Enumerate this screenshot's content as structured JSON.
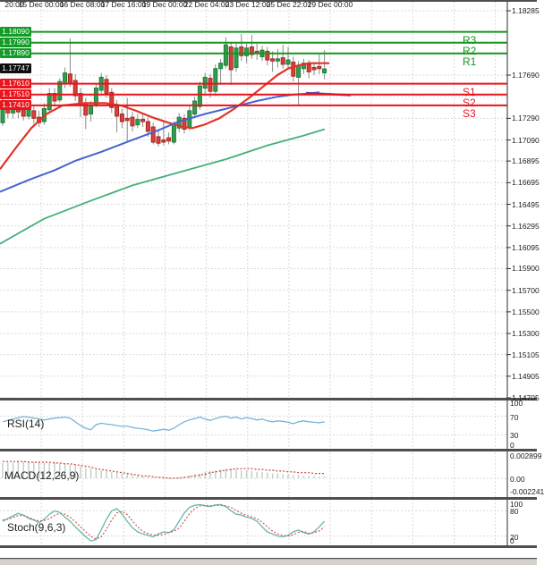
{
  "colors": {
    "bull": "#2f9e4f",
    "bull_border": "#1e7d38",
    "bear": "#d9403a",
    "bear_border": "#a32822",
    "wick": "#8a8a8a",
    "resistance_line": "#15961c",
    "support_line": "#e9141c",
    "badge_resistance": "#129c26",
    "badge_support": "#e9141c",
    "badge_price": "#0d0d0d",
    "ma_fast": "#e23328",
    "ma_mid": "#4663d0",
    "ma_slow": "#46b078",
    "purple_line": "#6d3f99",
    "rsi_line": "#78b3d8",
    "macd_hist": "#bfcdc5",
    "macd_signal": "#c8413d",
    "stoch_k": "#63b8a9",
    "stoch_d": "#d4574e",
    "grid": "#d9d9d9",
    "separator": "#4f4f4f",
    "axis_text": "#1a1a1a"
  },
  "levels": [
    {
      "name": "R3",
      "price": 1.1809,
      "type": "resistance"
    },
    {
      "name": "R2",
      "price": 1.1799,
      "type": "resistance"
    },
    {
      "name": "R1",
      "price": 1.1789,
      "type": "resistance"
    },
    {
      "name": "S1",
      "price": 1.1761,
      "type": "support"
    },
    {
      "name": "S2",
      "price": 1.1751,
      "type": "support"
    },
    {
      "name": "S3",
      "price": 1.1741,
      "type": "support"
    }
  ],
  "current_price": "1.17747",
  "price_axis": {
    "plain_labels": [
      "1.18285",
      "1.17690",
      "1.17290",
      "1.17090",
      "1.16895",
      "1.16695",
      "1.16495",
      "1.16295",
      "1.16095",
      "1.15900",
      "1.15700",
      "1.15500",
      "1.15300",
      "1.15105",
      "1.14905",
      "1.14705"
    ],
    "badges": [
      {
        "text": "1.18090",
        "price": 1.1809,
        "kind": "resistance"
      },
      {
        "text": "1.17990",
        "price": 1.1799,
        "kind": "resistance"
      },
      {
        "text": "1.17890",
        "price": 1.1789,
        "kind": "resistance"
      },
      {
        "text": "1.17747",
        "price": 1.17747,
        "kind": "price"
      },
      {
        "text": "1.17610",
        "price": 1.1761,
        "kind": "support"
      },
      {
        "text": "1.17510",
        "price": 1.1751,
        "kind": "support"
      },
      {
        "text": "1.17410",
        "price": 1.1741,
        "kind": "support"
      }
    ]
  },
  "time_axis": {
    "labels": [
      {
        "text": "20:00",
        "x": 16
      },
      {
        "text": "15 Dec 00:00",
        "x": 46
      },
      {
        "text": "16 Dec 08:00",
        "x": 92
      },
      {
        "text": "17 Dec 16:00",
        "x": 138
      },
      {
        "text": "19 Dec 00:00",
        "x": 184
      },
      {
        "text": "22 Dec 04:00",
        "x": 231
      },
      {
        "text": "23 Dec 12:00",
        "x": 277
      },
      {
        "text": "25 Dec 22:01",
        "x": 323
      },
      {
        "text": "29 Dec 00:00",
        "x": 369
      }
    ]
  },
  "chart_data": [
    {
      "type": "candlestick",
      "title": "",
      "ylim": [
        1.14705,
        1.18368
      ],
      "grid_prices": [
        1.18285,
        1.1809,
        1.1789,
        1.1769,
        1.1749,
        1.1729,
        1.1709,
        1.16895,
        1.16695,
        1.16495,
        1.16295,
        1.16095,
        1.159,
        1.157,
        1.155,
        1.153,
        1.15105,
        1.14905,
        1.14705
      ],
      "candles": [
        [
          1.1725,
          1.1747,
          1.1722,
          1.1741
        ],
        [
          1.1741,
          1.1746,
          1.1729,
          1.1734
        ],
        [
          1.1734,
          1.1744,
          1.1729,
          1.1739
        ],
        [
          1.1738,
          1.1743,
          1.1729,
          1.1735
        ],
        [
          1.1737,
          1.1742,
          1.1727,
          1.1731
        ],
        [
          1.1731,
          1.1741,
          1.1728,
          1.1737
        ],
        [
          1.1736,
          1.174,
          1.1724,
          1.1729
        ],
        [
          1.173,
          1.1736,
          1.1721,
          1.1725
        ],
        [
          1.1726,
          1.1743,
          1.1723,
          1.1738
        ],
        [
          1.1737,
          1.1757,
          1.1733,
          1.1752
        ],
        [
          1.1752,
          1.1757,
          1.174,
          1.1745
        ],
        [
          1.1746,
          1.1766,
          1.1744,
          1.1763
        ],
        [
          1.1761,
          1.1776,
          1.1757,
          1.1771
        ],
        [
          1.177,
          1.1803,
          1.1758,
          1.1761
        ],
        [
          1.1764,
          1.177,
          1.1745,
          1.175
        ],
        [
          1.1752,
          1.1757,
          1.173,
          1.1741
        ],
        [
          1.1743,
          1.1748,
          1.1719,
          1.1732
        ],
        [
          1.1733,
          1.1745,
          1.1726,
          1.1741
        ],
        [
          1.1742,
          1.1761,
          1.1739,
          1.1757
        ],
        [
          1.1755,
          1.1771,
          1.1752,
          1.1767
        ],
        [
          1.1765,
          1.1769,
          1.1748,
          1.1752
        ],
        [
          1.1753,
          1.1757,
          1.1734,
          1.1739
        ],
        [
          1.1741,
          1.1746,
          1.1716,
          1.1731
        ],
        [
          1.1733,
          1.1738,
          1.172,
          1.1726
        ],
        [
          1.1729,
          1.1748,
          1.1707,
          1.1727
        ],
        [
          1.173,
          1.1735,
          1.1717,
          1.1722
        ],
        [
          1.1723,
          1.1733,
          1.172,
          1.1728
        ],
        [
          1.1728,
          1.1734,
          1.1721,
          1.1726
        ],
        [
          1.1726,
          1.173,
          1.1712,
          1.1717
        ],
        [
          1.1721,
          1.1725,
          1.1705,
          1.1707
        ],
        [
          1.1712,
          1.1719,
          1.1703,
          1.1706
        ],
        [
          1.1709,
          1.1727,
          1.1704,
          1.1707
        ],
        [
          1.1711,
          1.1716,
          1.1705,
          1.1708
        ],
        [
          1.1707,
          1.1726,
          1.1705,
          1.1722
        ],
        [
          1.172,
          1.1734,
          1.1716,
          1.173
        ],
        [
          1.1729,
          1.1733,
          1.1715,
          1.1719
        ],
        [
          1.1721,
          1.174,
          1.1718,
          1.1736
        ],
        [
          1.1733,
          1.1749,
          1.173,
          1.1745
        ],
        [
          1.174,
          1.1763,
          1.1737,
          1.1759
        ],
        [
          1.1757,
          1.1771,
          1.175,
          1.1767
        ],
        [
          1.1766,
          1.177,
          1.1748,
          1.1754
        ],
        [
          1.1754,
          1.1779,
          1.175,
          1.1775
        ],
        [
          1.1775,
          1.1784,
          1.176,
          1.178
        ],
        [
          1.1778,
          1.1804,
          1.1775,
          1.1797
        ],
        [
          1.1795,
          1.18,
          1.176,
          1.1774
        ],
        [
          1.1776,
          1.1799,
          1.1772,
          1.1794
        ],
        [
          1.1795,
          1.1807,
          1.1782,
          1.1787
        ],
        [
          1.1787,
          1.1798,
          1.178,
          1.1794
        ],
        [
          1.1795,
          1.1806,
          1.1784,
          1.1788
        ],
        [
          1.1791,
          1.1798,
          1.1783,
          1.1789
        ],
        [
          1.1786,
          1.1796,
          1.1782,
          1.1792
        ],
        [
          1.1791,
          1.1795,
          1.1778,
          1.1783
        ],
        [
          1.1784,
          1.1791,
          1.1772,
          1.1782
        ],
        [
          1.1782,
          1.1793,
          1.1776,
          1.1784
        ],
        [
          1.1785,
          1.1797,
          1.1775,
          1.1779
        ],
        [
          1.1779,
          1.1795,
          1.1776,
          1.1783
        ],
        [
          1.1781,
          1.1786,
          1.1763,
          1.1768
        ],
        [
          1.1767,
          1.1782,
          1.1741,
          1.1778
        ],
        [
          1.1775,
          1.1784,
          1.177,
          1.178
        ],
        [
          1.1779,
          1.1783,
          1.1766,
          1.1772
        ],
        [
          1.1776,
          1.1781,
          1.1769,
          1.1774
        ],
        [
          1.1777,
          1.1788,
          1.177,
          1.1775
        ],
        [
          1.1771,
          1.1792,
          1.1765,
          1.17747
        ]
      ],
      "moving_averages": [
        {
          "name": "ma-fast-red",
          "points": [
            [
              0,
              1.1682
            ],
            [
              18,
              1.1702
            ],
            [
              35,
              1.172
            ],
            [
              52,
              1.1733
            ],
            [
              70,
              1.1741
            ],
            [
              95,
              1.1743
            ],
            [
              118,
              1.1743
            ],
            [
              135,
              1.1741
            ],
            [
              152,
              1.1736
            ],
            [
              170,
              1.173
            ],
            [
              188,
              1.1725
            ],
            [
              205,
              1.1721
            ],
            [
              215,
              1.172
            ],
            [
              228,
              1.1723
            ],
            [
              245,
              1.1729
            ],
            [
              262,
              1.1738
            ],
            [
              280,
              1.1749
            ],
            [
              298,
              1.1761
            ],
            [
              310,
              1.1769
            ],
            [
              322,
              1.1775
            ],
            [
              334,
              1.1778
            ],
            [
              345,
              1.178
            ],
            [
              368,
              1.178
            ]
          ]
        },
        {
          "name": "ma-mid-blue",
          "points": [
            [
              0,
              1.1661
            ],
            [
              32,
              1.1672
            ],
            [
              61,
              1.1681
            ],
            [
              85,
              1.169
            ],
            [
              113,
              1.1698
            ],
            [
              148,
              1.1709
            ],
            [
              177,
              1.1718
            ],
            [
              200,
              1.1726
            ],
            [
              229,
              1.1733
            ],
            [
              258,
              1.1739
            ],
            [
              287,
              1.1745
            ],
            [
              310,
              1.1749
            ],
            [
              328,
              1.1751
            ],
            [
              345,
              1.1752
            ],
            [
              357,
              1.1753
            ]
          ]
        },
        {
          "name": "ma-slow-green",
          "points": [
            [
              0,
              1.1613
            ],
            [
              49,
              1.1636
            ],
            [
              102,
              1.1653
            ],
            [
              148,
              1.1667
            ],
            [
              200,
              1.1679
            ],
            [
              252,
              1.1691
            ],
            [
              299,
              1.1704
            ],
            [
              339,
              1.1713
            ],
            [
              363,
              1.1719
            ]
          ]
        }
      ],
      "purple_segment": {
        "points": [
          [
            342,
            1.17525
          ],
          [
            392,
            1.17505
          ]
        ]
      }
    },
    {
      "type": "line",
      "label": "RSI(14)",
      "ylim": [
        0,
        100
      ],
      "guides": [
        70,
        30
      ],
      "axis": [
        {
          "t": "100",
          "v": 100
        },
        {
          "t": "70",
          "v": 70
        },
        {
          "t": "30",
          "v": 30
        },
        {
          "t": "0",
          "v": 0
        }
      ],
      "values": [
        58,
        61,
        64,
        67,
        69,
        68,
        66,
        64,
        62,
        64,
        66,
        67,
        68,
        66,
        58,
        50,
        44,
        41,
        52,
        55,
        53,
        52,
        50,
        48,
        49,
        46,
        44,
        43,
        41,
        38,
        40,
        42,
        40,
        44,
        52,
        58,
        62,
        65,
        68,
        64,
        61,
        65,
        68,
        70,
        66,
        68,
        64,
        67,
        65,
        62,
        64,
        60,
        58,
        60,
        59,
        57,
        54,
        58,
        60,
        58,
        57,
        56,
        58
      ]
    },
    {
      "type": "macd",
      "label": "MACD(12,26,9)",
      "ylim": [
        -0.002241,
        0.002899
      ],
      "axis": [
        {
          "t": "0.002899",
          "v": 0.002899
        },
        {
          "t": "0.00",
          "v": 0
        },
        {
          "t": "-0.002241",
          "v": -0.002241
        }
      ],
      "histogram": [
        0.0019,
        0.002,
        0.002,
        0.0021,
        0.0021,
        0.0021,
        0.002,
        0.002,
        0.0019,
        0.0019,
        0.002,
        0.0019,
        0.0018,
        0.0017,
        0.0016,
        0.0015,
        0.0013,
        0.0012,
        0.0011,
        0.001,
        0.0009,
        0.0008,
        0.0007,
        0.0006,
        0.0005,
        0.0004,
        0.0004,
        0.0003,
        0.0002,
        0.0001,
        0,
        -0.0001,
        -0.0001,
        0,
        0.0001,
        0.0002,
        0.0003,
        0.0005,
        0.0006,
        0.0008,
        0.0009,
        0.001,
        0.0011,
        0.0012,
        0.0012,
        0.0011,
        0.001,
        0.001,
        0.0009,
        0.0008,
        0.0008,
        0.0007,
        0.0006,
        0.0006,
        0.0005,
        0.0005,
        0.0004,
        0.0004,
        0.0003,
        0.0003,
        0.0003,
        0.0002,
        0.0002
      ],
      "signal": [
        0.0021,
        0.0021,
        0.0021,
        0.0021,
        0.0021,
        0.002,
        0.002,
        0.002,
        0.002,
        0.002,
        0.0019,
        0.0019,
        0.0018,
        0.0018,
        0.0017,
        0.0016,
        0.0015,
        0.0014,
        0.0012,
        0.0011,
        0.001,
        0.0009,
        0.0008,
        0.0007,
        0.0006,
        0.0005,
        0.0004,
        0.0003,
        0.0003,
        0.0002,
        0.0001,
        0.0001,
        0,
        0,
        0,
        0.0001,
        0.0002,
        0.0003,
        0.0004,
        0.0005,
        0.0007,
        0.0008,
        0.0009,
        0.001,
        0.0011,
        0.0012,
        0.0012,
        0.0012,
        0.0012,
        0.0011,
        0.0011,
        0.001,
        0.001,
        0.0009,
        0.0009,
        0.0008,
        0.0008,
        0.0007,
        0.0007,
        0.0007,
        0.0006,
        0.0006,
        0.0006
      ]
    },
    {
      "type": "stoch",
      "label": "Stoch(9,6,3)",
      "ylim": [
        0,
        100
      ],
      "guides": [
        80,
        20
      ],
      "axis": [
        {
          "t": "100",
          "v": 100
        },
        {
          "t": "80",
          "v": 80
        },
        {
          "t": "20",
          "v": 20
        },
        {
          "t": "0",
          "v": 0
        }
      ],
      "k": [
        55,
        62,
        68,
        74,
        70,
        62,
        58,
        52,
        60,
        72,
        80,
        76,
        65,
        55,
        42,
        30,
        18,
        8,
        12,
        35,
        60,
        80,
        85,
        72,
        55,
        40,
        30,
        25,
        22,
        18,
        25,
        30,
        28,
        35,
        55,
        75,
        88,
        93,
        95,
        92,
        90,
        94,
        95,
        90,
        80,
        72,
        70,
        65,
        62,
        55,
        42,
        30,
        25,
        20,
        18,
        22,
        30,
        34,
        28,
        25,
        30,
        42,
        55
      ],
      "d": [
        58,
        60,
        64,
        69,
        69,
        65,
        59,
        56,
        57,
        61,
        69,
        74,
        72,
        65,
        54,
        42,
        30,
        19,
        13,
        18,
        36,
        58,
        75,
        79,
        71,
        56,
        42,
        31,
        26,
        22,
        22,
        24,
        28,
        31,
        39,
        55,
        73,
        85,
        92,
        93,
        92,
        93,
        93,
        92,
        88,
        81,
        74,
        69,
        66,
        61,
        53,
        42,
        32,
        25,
        21,
        20,
        23,
        29,
        31,
        26,
        28,
        32,
        42
      ]
    }
  ]
}
